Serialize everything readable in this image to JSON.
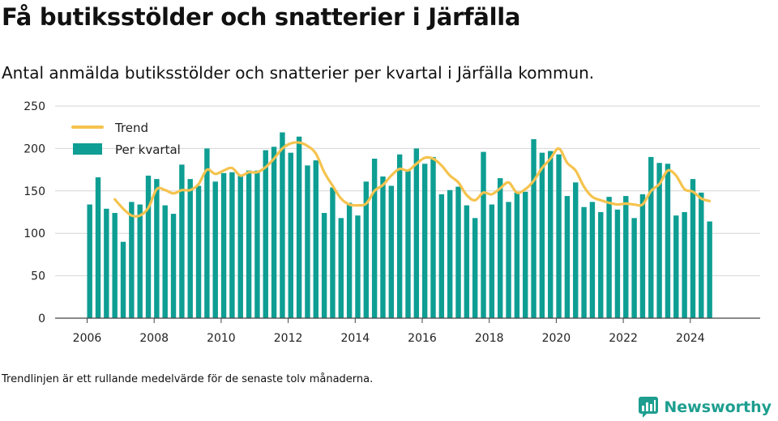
{
  "title": "Få butiksstölder och snatterier i Järfälla",
  "subtitle": "Antal anmälda butiksstölder och snatterier per kvartal i Järfälla kommun.",
  "footnote": "Trendlinjen är ett rullande medelvärde för de senaste tolv månaderna.",
  "brand": {
    "name": "Newsworthy",
    "icon": "newsworthy-logo-icon",
    "color": "#1d9e8f"
  },
  "chart_data": {
    "type": "bar",
    "ylim": [
      0,
      250
    ],
    "yticks": [
      0,
      50,
      100,
      150,
      200,
      250
    ],
    "xticks": [
      "2006",
      "2008",
      "2010",
      "2012",
      "2014",
      "2016",
      "2018",
      "2020",
      "2022",
      "2024"
    ],
    "grid": true,
    "legend_position": "top-left",
    "colors": {
      "bars": "#0e9e93",
      "trend": "#f5c34e"
    },
    "start": "2006 Q1",
    "series": [
      {
        "name": "Per kvartal",
        "type": "bar",
        "values": [
          134,
          166,
          129,
          124,
          90,
          137,
          134,
          168,
          164,
          133,
          123,
          181,
          164,
          156,
          200,
          161,
          171,
          172,
          169,
          174,
          174,
          198,
          202,
          219,
          195,
          214,
          180,
          186,
          124,
          154,
          118,
          136,
          121,
          161,
          188,
          167,
          156,
          193,
          174,
          200,
          182,
          190,
          146,
          151,
          155,
          133,
          118,
          196,
          134,
          165,
          137,
          148,
          149,
          211,
          195,
          197,
          193,
          144,
          160,
          131,
          137,
          125,
          143,
          128,
          144,
          118,
          146,
          190,
          183,
          182,
          121,
          125,
          164,
          148,
          114
        ]
      },
      {
        "name": "Trend",
        "type": "line",
        "values": [
          null,
          null,
          null,
          140,
          129,
          121,
          121,
          130,
          152,
          151,
          147,
          151,
          151,
          158,
          175,
          170,
          174,
          177,
          168,
          172,
          172,
          178,
          188,
          200,
          206,
          207,
          203,
          194,
          172,
          156,
          141,
          134,
          133,
          135,
          150,
          157,
          168,
          176,
          174,
          182,
          189,
          188,
          180,
          168,
          160,
          145,
          139,
          148,
          146,
          153,
          160,
          148,
          152,
          162,
          177,
          188,
          200,
          183,
          174,
          155,
          143,
          139,
          136,
          134,
          135,
          134,
          134,
          150,
          158,
          174,
          168,
          152,
          149,
          141,
          138
        ]
      }
    ]
  }
}
